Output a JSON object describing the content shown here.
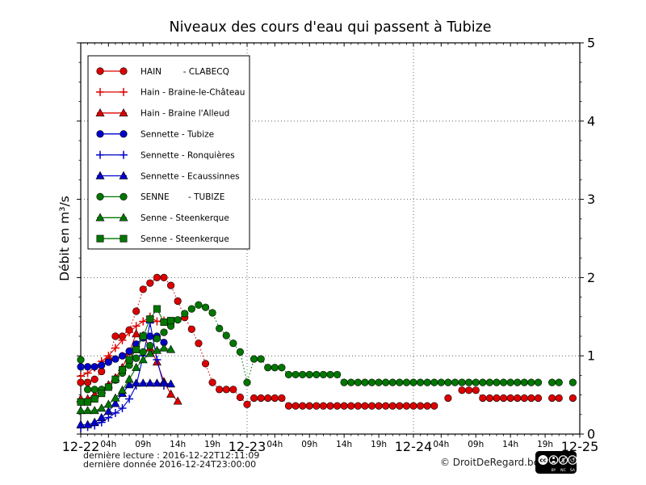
{
  "page": {
    "footer": {
      "last_reading": "dernière lecture : 2016-12-22T12:11:09",
      "last_data": "dernière donnée  2016-12-24T23:00:00",
      "copyright": "© DroitDeRegard.be",
      "license_badges": [
        "CC",
        "BY",
        "NC",
        "SA"
      ]
    }
  },
  "colors": {
    "red": "#dd0000",
    "blue": "#0000cc",
    "green": "#007700",
    "axis": "#000000",
    "grid": "#444444"
  },
  "chart_data": {
    "type": "line",
    "title": "Niveaux des cours d'eau qui passent à Tubize",
    "xlabel": "",
    "ylabel": "Débit en m³/s",
    "xlim_hours": [
      0,
      72
    ],
    "ylim": [
      0,
      5
    ],
    "y_ticks": [
      0,
      1,
      2,
      3,
      4,
      5
    ],
    "y_minor_step": 0.25,
    "x_minor_every_hours": 1,
    "grid": {
      "h_lines": [
        1,
        2,
        3,
        4
      ],
      "v_lines_hours": [
        24,
        48
      ],
      "style": "dash-dot"
    },
    "legend_position": "upper left",
    "x_ticks": [
      {
        "hour": 0,
        "label": "12-22",
        "day": true
      },
      {
        "hour": 4,
        "label": "04h"
      },
      {
        "hour": 9,
        "label": "09h"
      },
      {
        "hour": 14,
        "label": "14h"
      },
      {
        "hour": 19,
        "label": "19h"
      },
      {
        "hour": 24,
        "label": "12-23",
        "day": true
      },
      {
        "hour": 28,
        "label": "04h"
      },
      {
        "hour": 33,
        "label": "09h"
      },
      {
        "hour": 38,
        "label": "14h"
      },
      {
        "hour": 43,
        "label": "19h"
      },
      {
        "hour": 48,
        "label": "12-24",
        "day": true
      },
      {
        "hour": 52,
        "label": "04h"
      },
      {
        "hour": 57,
        "label": "09h"
      },
      {
        "hour": 62,
        "label": "14h"
      },
      {
        "hour": 67,
        "label": "19h"
      },
      {
        "hour": 72,
        "label": "12-25",
        "day": true
      }
    ],
    "series": [
      {
        "key": "hain-clabecq",
        "label": "HAIN        - CLABECQ",
        "color": "#dd0000",
        "marker": "circle",
        "line": "dotted",
        "start_hour": 0,
        "step_hours": 1,
        "values": [
          0.66,
          0.66,
          0.7,
          0.8,
          0.95,
          1.25,
          1.25,
          1.33,
          1.57,
          1.85,
          1.93,
          2.0,
          2.0,
          1.9,
          1.7,
          1.49,
          1.34,
          1.16,
          0.9,
          0.66,
          0.57,
          0.57,
          0.57,
          0.47,
          0.38,
          0.46,
          0.46,
          0.46,
          0.46,
          0.46,
          0.36,
          0.36,
          0.36,
          0.36,
          0.36,
          0.36,
          0.36,
          0.36,
          0.36,
          0.36,
          0.36,
          0.36,
          0.36,
          0.36,
          0.36,
          0.36,
          0.36,
          0.36,
          0.36,
          0.36,
          0.36,
          0.36,
          null,
          0.46,
          null,
          0.56,
          0.56,
          0.56,
          0.46,
          0.46,
          0.46,
          0.46,
          0.46,
          0.46,
          0.46,
          0.46,
          0.46,
          null,
          0.46,
          0.46,
          null,
          0.46
        ]
      },
      {
        "key": "hain-braine-le-chateau",
        "label": "Hain - Braine-le-Château",
        "color": "#dd0000",
        "marker": "plus",
        "line": "solid",
        "start_hour": 0,
        "step_hours": 1,
        "values": [
          0.74,
          0.78,
          0.85,
          0.93,
          1.0,
          1.1,
          1.2,
          1.3,
          1.38,
          1.44,
          1.5,
          1.44,
          1.45
        ]
      },
      {
        "key": "hain-braine-l-alleud",
        "label": "Hain - Braine l'Alleud",
        "color": "#dd0000",
        "marker": "triangle",
        "line": "solid",
        "start_hour": 0,
        "step_hours": 1,
        "values": [
          0.45,
          0.45,
          0.5,
          0.56,
          0.63,
          0.72,
          0.85,
          1.05,
          1.28,
          1.26,
          1.1,
          0.92,
          0.67,
          0.51,
          0.42
        ]
      },
      {
        "key": "sennette-tubize",
        "label": "Sennette - Tubize",
        "color": "#0000cc",
        "marker": "circle",
        "line": "solid",
        "start_hour": 0,
        "step_hours": 1,
        "values": [
          0.86,
          0.86,
          0.86,
          0.88,
          0.92,
          0.96,
          1.0,
          1.06,
          1.15,
          1.23,
          1.25,
          1.25,
          1.17
        ]
      },
      {
        "key": "sennette-ronquieres",
        "label": "Sennette - Ronquières",
        "color": "#0000cc",
        "marker": "plus",
        "line": "solid",
        "start_hour": 0,
        "step_hours": 1,
        "values": [
          0.08,
          0.09,
          0.11,
          0.15,
          0.21,
          0.27,
          0.33,
          0.45,
          0.62,
          1.0,
          1.42,
          0.95,
          0.62
        ]
      },
      {
        "key": "sennette-ecaussinnes",
        "label": "Sennette - Ecaussinnes",
        "color": "#0000cc",
        "marker": "triangle",
        "line": "solid",
        "start_hour": 0,
        "step_hours": 1,
        "values": [
          0.12,
          0.12,
          0.15,
          0.21,
          0.29,
          0.39,
          0.52,
          0.63,
          0.65,
          0.65,
          0.65,
          0.65,
          0.65,
          0.64
        ]
      },
      {
        "key": "senne-tubize",
        "label": "SENNE       - TUBIZE",
        "color": "#007700",
        "marker": "circle",
        "line": "dotted",
        "start_hour": 0,
        "step_hours": 1,
        "values": [
          0.95,
          0.57,
          0.57,
          0.57,
          0.6,
          0.69,
          0.78,
          0.88,
          0.97,
          1.05,
          1.13,
          1.22,
          1.3,
          1.38,
          1.46,
          1.54,
          1.6,
          1.65,
          1.62,
          1.55,
          1.35,
          1.26,
          1.16,
          1.05,
          0.66,
          0.96,
          0.96,
          0.85,
          0.85,
          0.85,
          0.76,
          0.76,
          0.76,
          0.76,
          0.76,
          0.76,
          0.76,
          0.76,
          0.66,
          0.66,
          0.66,
          0.66,
          0.66,
          0.66,
          0.66,
          0.66,
          0.66,
          0.66,
          0.66,
          0.66,
          0.66,
          0.66,
          0.66,
          0.66,
          0.66,
          0.66,
          0.66,
          0.66,
          0.66,
          0.66,
          0.66,
          0.66,
          0.66,
          0.66,
          0.66,
          0.66,
          0.66,
          null,
          0.66,
          0.66,
          null,
          0.66
        ]
      },
      {
        "key": "senne-steenkerque-1",
        "label": "Senne - Steenkerque",
        "color": "#007700",
        "marker": "triangle",
        "line": "solid",
        "start_hour": 0,
        "step_hours": 1,
        "values": [
          0.3,
          0.3,
          0.3,
          0.33,
          0.38,
          0.46,
          0.56,
          0.7,
          0.85,
          0.95,
          1.03,
          1.07,
          1.1,
          1.08
        ]
      },
      {
        "key": "senne-steenkerque-2",
        "label": "Senne - Steenkerque",
        "color": "#007700",
        "marker": "square",
        "line": "solid",
        "start_hour": 0,
        "step_hours": 1,
        "values": [
          0.41,
          0.41,
          0.45,
          0.52,
          0.6,
          0.7,
          0.82,
          0.95,
          1.08,
          1.25,
          1.47,
          1.6,
          1.43,
          1.45
        ]
      }
    ]
  }
}
